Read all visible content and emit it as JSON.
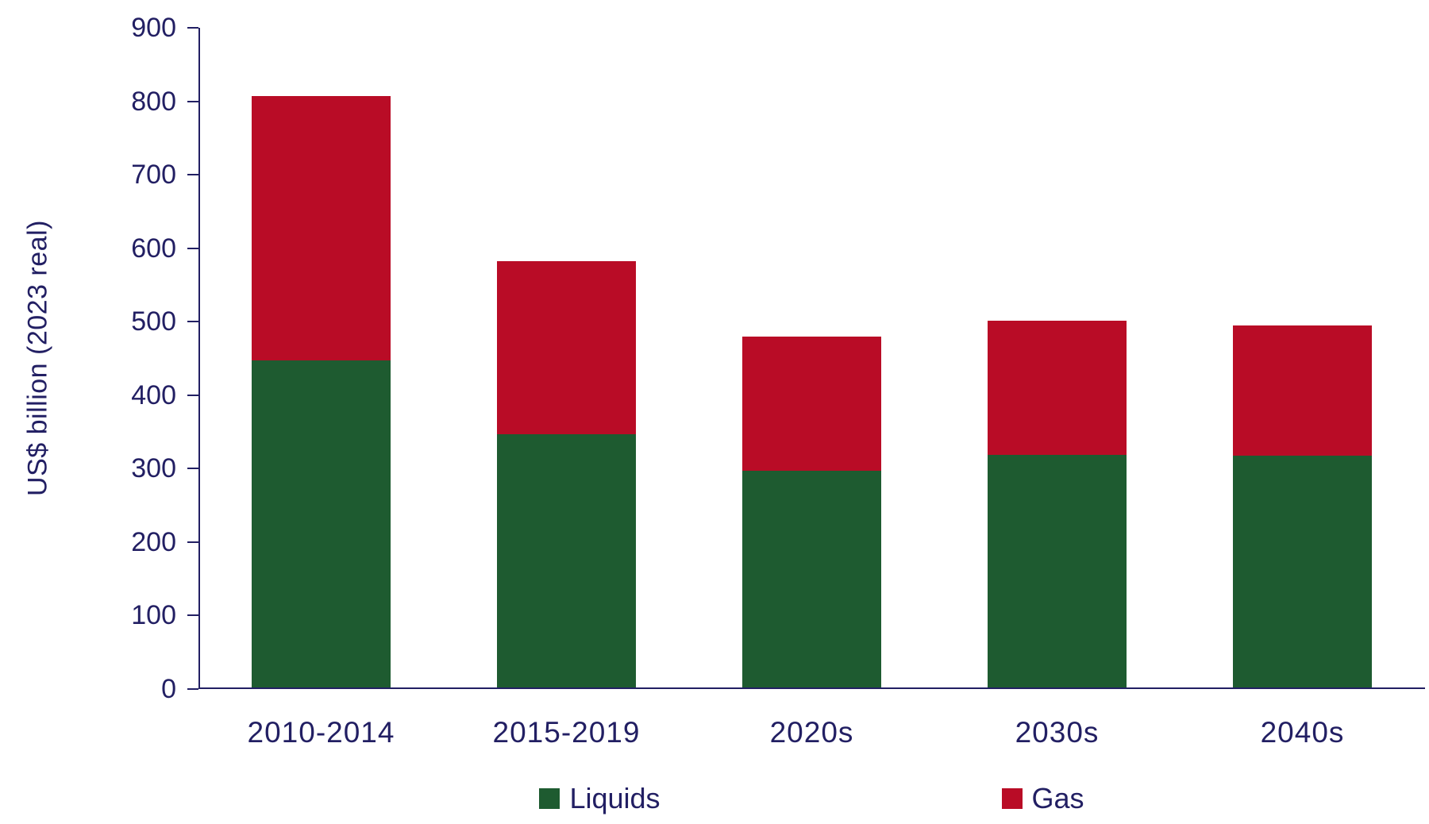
{
  "chart_data": {
    "type": "bar",
    "stacked": true,
    "title": "",
    "xlabel": "",
    "ylabel": "US$ billion (2023 real)",
    "categories": [
      "2010-2014",
      "2015-2019",
      "2020s",
      "2030s",
      "2040s"
    ],
    "series": [
      {
        "name": "Liquids",
        "color": "#1e5b30",
        "values": [
          445,
          345,
          295,
          317,
          315
        ]
      },
      {
        "name": "Gas",
        "color": "#b90c26",
        "values": [
          360,
          235,
          183,
          183,
          177
        ]
      }
    ],
    "totals": [
      805,
      580,
      478,
      500,
      492
    ],
    "ylim": [
      0,
      900
    ],
    "ytick_step": 100,
    "grid": false,
    "legend_position": "bottom",
    "axis_color": "#221f63"
  }
}
